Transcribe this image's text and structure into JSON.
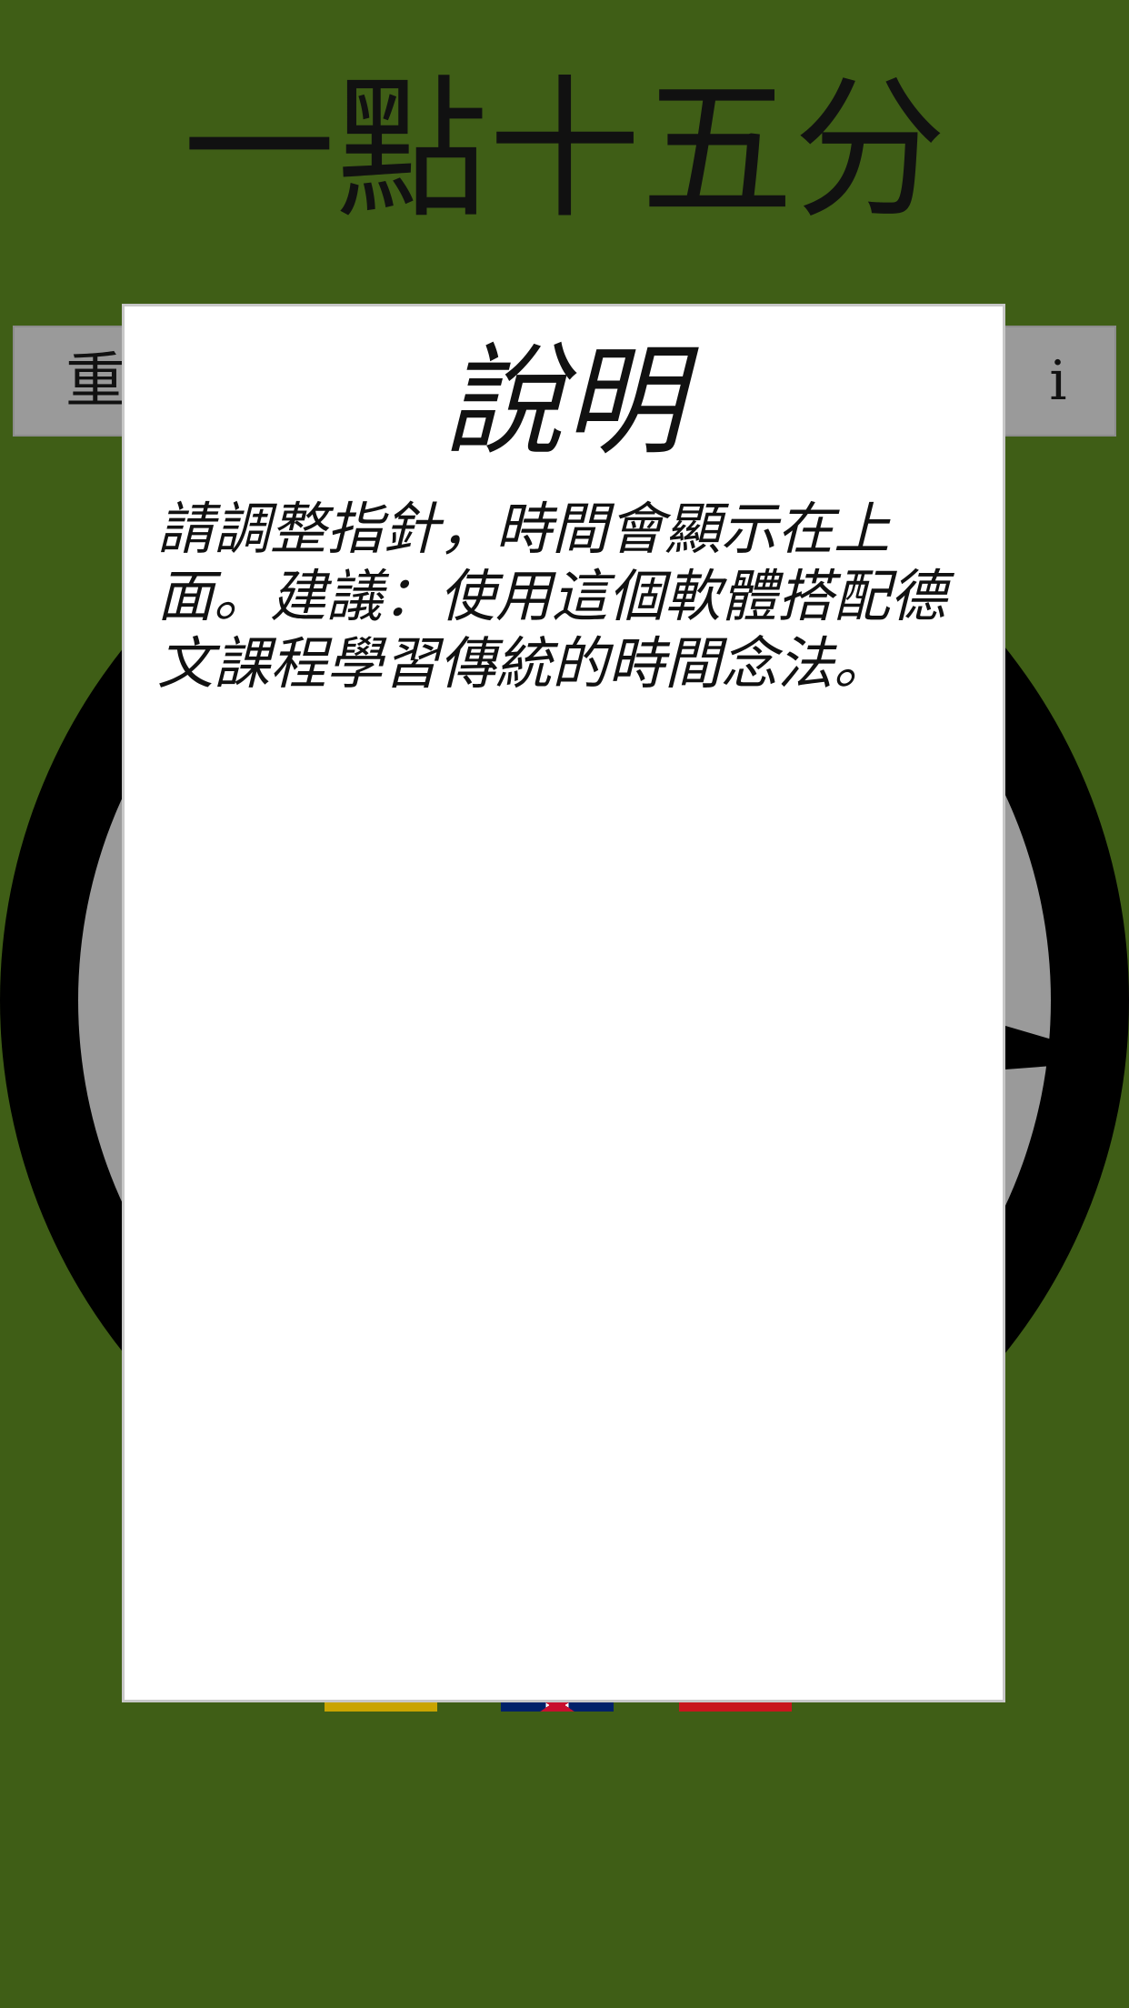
{
  "header": {
    "time_text": "一點十五分"
  },
  "buttons": {
    "reset_label": "重置",
    "info_label": "i"
  },
  "clock": {
    "hour": 1,
    "minute": 15,
    "ring_color": "#000000",
    "face_color": "#9a9a9a",
    "hand_color": "#000000"
  },
  "flags": [
    {
      "icon": "german-flag-icon",
      "color": "#c9a400"
    },
    {
      "icon": "uk-flag-icon",
      "color": "#012169"
    },
    {
      "icon": "flag-icon",
      "color": "#c8161d"
    }
  ],
  "dialog": {
    "title": "說明",
    "body": "請調整指針，時間會顯示在上面。建議：使用這個軟體搭配德文課程學習傳統的時間念法。"
  },
  "colors": {
    "background": "#3f5e16",
    "button": "#9a9a9a",
    "dialog": "#ffffff"
  }
}
